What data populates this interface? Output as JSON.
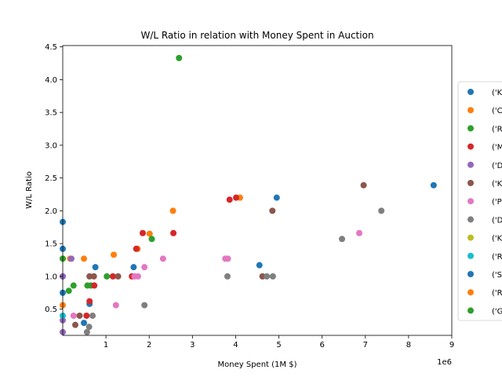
{
  "chart_data": {
    "type": "scatter",
    "title": "W/L Ratio in relation with Money Spent in Auction",
    "xlabel": "Money Spent (1M $)",
    "ylabel": "W/L Ratio",
    "x_offset_label": "1e6",
    "xlim": [
      0,
      9000000
    ],
    "ylim": [
      0.1,
      4.52
    ],
    "xticks": [
      {
        "value": 1000000,
        "label": "1"
      },
      {
        "value": 2000000,
        "label": "2"
      },
      {
        "value": 3000000,
        "label": "3"
      },
      {
        "value": 4000000,
        "label": "4"
      },
      {
        "value": 5000000,
        "label": "5"
      },
      {
        "value": 6000000,
        "label": "6"
      },
      {
        "value": 7000000,
        "label": "7"
      },
      {
        "value": 8000000,
        "label": "8"
      },
      {
        "value": 9000000,
        "label": "9"
      }
    ],
    "yticks": [
      {
        "value": 0.5,
        "label": "0.5"
      },
      {
        "value": 1.0,
        "label": "1.0"
      },
      {
        "value": 1.5,
        "label": "1.5"
      },
      {
        "value": 2.0,
        "label": "2.0"
      },
      {
        "value": 2.5,
        "label": "2.5"
      },
      {
        "value": 3.0,
        "label": "3.0"
      },
      {
        "value": 3.5,
        "label": "3.5"
      },
      {
        "value": 4.0,
        "label": "4.0"
      },
      {
        "value": 4.5,
        "label": "4.5"
      }
    ],
    "legend_position": "right",
    "grid": false,
    "series": [
      {
        "name": "('K",
        "color": "#1f77b4",
        "points": [
          [
            0,
            1.83
          ],
          [
            0,
            1.42
          ],
          [
            0,
            1.0
          ],
          [
            0,
            0.75
          ],
          [
            755000,
            1.14
          ],
          [
            1640000,
            1.14
          ],
          [
            4550000,
            1.17
          ],
          [
            4950000,
            2.2
          ],
          [
            8580000,
            2.39
          ],
          [
            490000,
            0.29
          ],
          [
            620000,
            0.58
          ]
        ]
      },
      {
        "name": "('C",
        "color": "#ff7f0e",
        "points": [
          [
            0,
            1.27
          ],
          [
            0,
            0.56
          ],
          [
            170000,
            1.27
          ],
          [
            490000,
            1.27
          ],
          [
            1180000,
            1.33
          ],
          [
            1730000,
            1.42
          ],
          [
            2010000,
            1.65
          ],
          [
            2550000,
            2.0
          ],
          [
            4100000,
            2.2
          ]
        ]
      },
      {
        "name": "('R",
        "color": "#2ca02c",
        "points": [
          [
            0,
            1.27
          ],
          [
            140000,
            0.78
          ],
          [
            250000,
            0.86
          ],
          [
            570000,
            0.86
          ],
          [
            650000,
            0.86
          ],
          [
            1020000,
            1.0
          ],
          [
            2060000,
            1.57
          ],
          [
            2690000,
            4.33
          ]
        ]
      },
      {
        "name": "('M",
        "color": "#d62728",
        "points": [
          [
            550000,
            0.4
          ],
          [
            620000,
            0.62
          ],
          [
            730000,
            0.86
          ],
          [
            1160000,
            1.0
          ],
          [
            1600000,
            1.0
          ],
          [
            1700000,
            1.42
          ],
          [
            1850000,
            1.66
          ],
          [
            2560000,
            1.66
          ],
          [
            3860000,
            2.17
          ],
          [
            4010000,
            2.2
          ]
        ]
      },
      {
        "name": "('D",
        "color": "#9467bd",
        "points": [
          [
            0,
            0.15
          ],
          [
            0,
            1.0
          ],
          [
            200000,
            1.27
          ],
          [
            0,
            0.33
          ]
        ]
      },
      {
        "name": "('K",
        "color": "#8c564b",
        "points": [
          [
            290000,
            0.26
          ],
          [
            390000,
            0.4
          ],
          [
            620000,
            1.0
          ],
          [
            720000,
            1.0
          ],
          [
            1280000,
            1.0
          ],
          [
            4620000,
            1.0
          ],
          [
            4850000,
            2.0
          ],
          [
            6960000,
            2.39
          ]
        ]
      },
      {
        "name": "('P",
        "color": "#e377c2",
        "points": [
          [
            250000,
            0.4
          ],
          [
            1230000,
            0.56
          ],
          [
            1660000,
            1.0
          ],
          [
            1740000,
            1.0
          ],
          [
            1890000,
            1.14
          ],
          [
            2320000,
            1.27
          ],
          [
            3760000,
            1.27
          ],
          [
            3820000,
            1.27
          ],
          [
            6860000,
            1.66
          ]
        ]
      },
      {
        "name": "('D",
        "color": "#7f7f7f",
        "points": [
          [
            560000,
            0.15
          ],
          [
            610000,
            0.23
          ],
          [
            690000,
            0.4
          ],
          [
            1890000,
            0.56
          ],
          [
            3810000,
            1.0
          ],
          [
            4720000,
            1.0
          ],
          [
            4860000,
            1.0
          ],
          [
            6460000,
            1.57
          ],
          [
            7370000,
            2.0
          ]
        ]
      },
      {
        "name": "('K",
        "color": "#bcbd22",
        "points": []
      },
      {
        "name": "('R",
        "color": "#17becf",
        "points": [
          [
            0,
            0.4
          ]
        ]
      },
      {
        "name": "('S",
        "color": "#1f77b4",
        "points": []
      },
      {
        "name": "('R",
        "color": "#ff7f0e",
        "points": []
      },
      {
        "name": "('G",
        "color": "#2ca02c",
        "points": []
      }
    ]
  }
}
